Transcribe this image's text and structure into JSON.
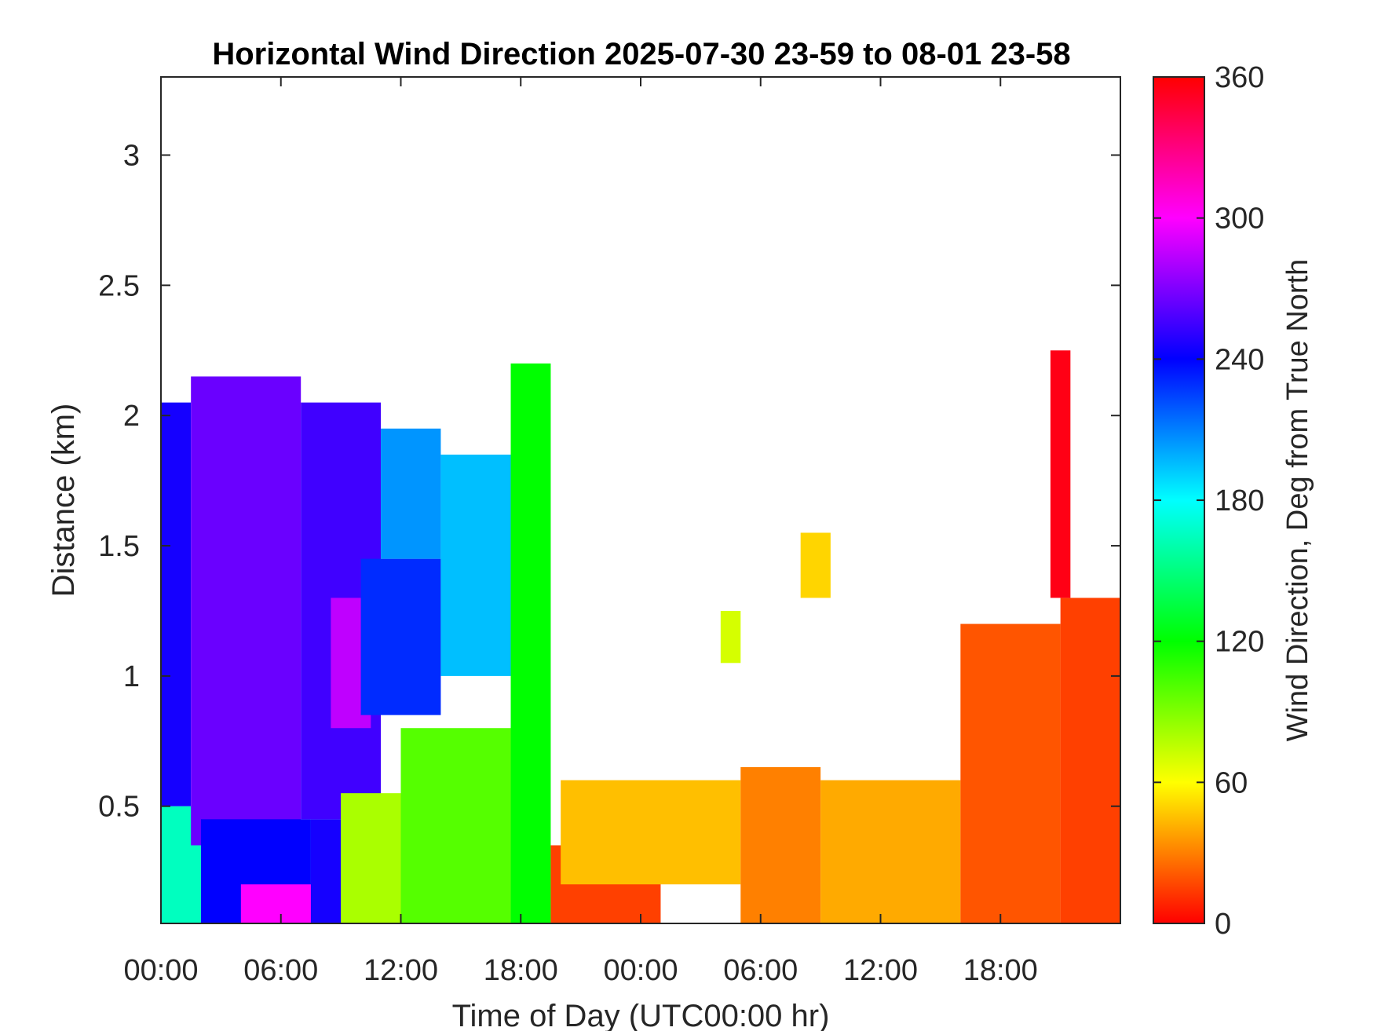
{
  "chart_data": {
    "type": "heatmap",
    "title": "Horizontal Wind Direction 2025-07-30 23-59 to 08-01 23-58",
    "xlabel": "Time of Day (UTC00:00 hr)",
    "ylabel": "Distance (km)",
    "xlim_hours": [
      0,
      48
    ],
    "ylim_km": [
      0.05,
      3.3
    ],
    "x_ticks": [
      {
        "hour": 0,
        "label": "00:00"
      },
      {
        "hour": 6,
        "label": "06:00"
      },
      {
        "hour": 12,
        "label": "12:00"
      },
      {
        "hour": 18,
        "label": "18:00"
      },
      {
        "hour": 24,
        "label": "00:00"
      },
      {
        "hour": 30,
        "label": "06:00"
      },
      {
        "hour": 36,
        "label": "12:00"
      },
      {
        "hour": 42,
        "label": "18:00"
      }
    ],
    "y_ticks": [
      {
        "km": 0.5,
        "label": "0.5"
      },
      {
        "km": 1,
        "label": "1"
      },
      {
        "km": 1.5,
        "label": "1.5"
      },
      {
        "km": 2,
        "label": "2"
      },
      {
        "km": 2.5,
        "label": "2.5"
      },
      {
        "km": 3,
        "label": "3"
      }
    ],
    "colorbar": {
      "label": "Wind Direction, Deg from True North",
      "range": [
        0,
        360
      ],
      "ticks": [
        {
          "value": 0,
          "label": "0"
        },
        {
          "value": 60,
          "label": "60"
        },
        {
          "value": 120,
          "label": "120"
        },
        {
          "value": 180,
          "label": "180"
        },
        {
          "value": 240,
          "label": "240"
        },
        {
          "value": 300,
          "label": "300"
        },
        {
          "value": 360,
          "label": "360"
        }
      ],
      "colormap": "hsv"
    },
    "regions": [
      {
        "t0": 0,
        "t1": 2,
        "h0": 0.05,
        "h1": 0.5,
        "direction": 165
      },
      {
        "t0": 0,
        "t1": 1.5,
        "h0": 0.5,
        "h1": 2.05,
        "direction": 245
      },
      {
        "t0": 1.5,
        "t1": 7,
        "h0": 0.35,
        "h1": 2.15,
        "direction": 265
      },
      {
        "t0": 2,
        "t1": 7.5,
        "h0": 0.05,
        "h1": 0.45,
        "direction": 240
      },
      {
        "t0": 4,
        "t1": 8,
        "h0": 0.05,
        "h1": 0.2,
        "direction": 300
      },
      {
        "t0": 7,
        "t1": 11,
        "h0": 0.45,
        "h1": 2.05,
        "direction": 255
      },
      {
        "t0": 8.5,
        "t1": 10.5,
        "h0": 0.8,
        "h1": 1.3,
        "direction": 285
      },
      {
        "t0": 7.5,
        "t1": 10,
        "h0": 0.05,
        "h1": 0.45,
        "direction": 245
      },
      {
        "t0": 10,
        "t1": 14,
        "h0": 0.85,
        "h1": 1.45,
        "direction": 230
      },
      {
        "t0": 11,
        "t1": 14,
        "h0": 1.45,
        "h1": 1.95,
        "direction": 205
      },
      {
        "t0": 14,
        "t1": 17.5,
        "h0": 1.0,
        "h1": 1.85,
        "direction": 195
      },
      {
        "t0": 9,
        "t1": 12,
        "h0": 0.05,
        "h1": 0.55,
        "direction": 80
      },
      {
        "t0": 12,
        "t1": 17.5,
        "h0": 0.05,
        "h1": 0.8,
        "direction": 100
      },
      {
        "t0": 17.5,
        "t1": 19.5,
        "h0": 0.05,
        "h1": 2.2,
        "direction": 120
      },
      {
        "t0": 19.5,
        "t1": 25,
        "h0": 0.05,
        "h1": 0.35,
        "direction": 15
      },
      {
        "t0": 20,
        "t1": 29,
        "h0": 0.2,
        "h1": 0.6,
        "direction": 45
      },
      {
        "t0": 29,
        "t1": 33,
        "h0": 0.05,
        "h1": 0.65,
        "direction": 30
      },
      {
        "t0": 33,
        "t1": 40,
        "h0": 0.05,
        "h1": 0.6,
        "direction": 40
      },
      {
        "t0": 40,
        "t1": 45,
        "h0": 0.05,
        "h1": 1.2,
        "direction": 20
      },
      {
        "t0": 45,
        "t1": 48,
        "h0": 0.05,
        "h1": 1.3,
        "direction": 15
      },
      {
        "t0": 44.5,
        "t1": 45.5,
        "h0": 1.3,
        "h1": 2.25,
        "direction": 355
      },
      {
        "t0": 32,
        "t1": 33.5,
        "h0": 1.3,
        "h1": 1.55,
        "direction": 50
      },
      {
        "t0": 28,
        "t1": 29,
        "h0": 1.05,
        "h1": 1.25,
        "direction": 70
      }
    ]
  }
}
